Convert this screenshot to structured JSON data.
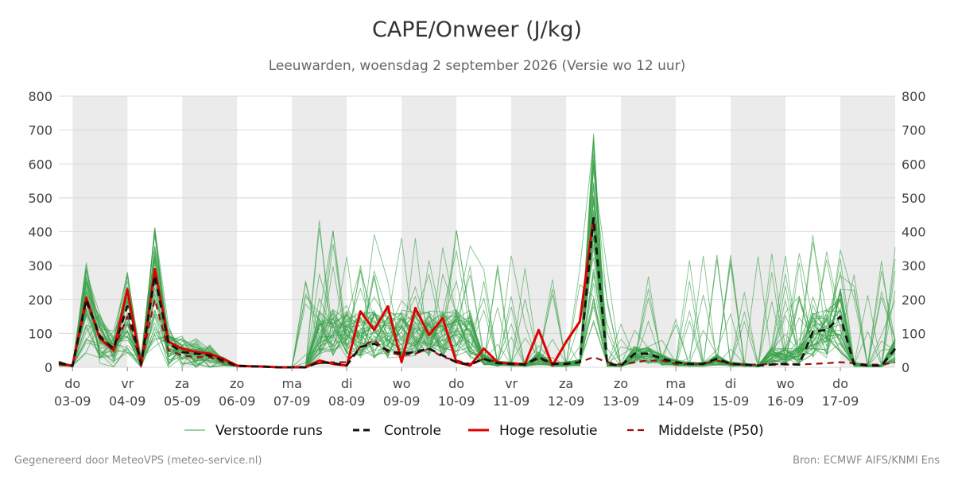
{
  "header": {
    "title": "CAPE/Onweer (J/kg)",
    "subtitle": "Leeuwarden, woensdag  2 september 2026 (Versie wo 12 uur)"
  },
  "footer": {
    "left": "Gegenereerd door MeteoVPS (meteo-service.nl)",
    "right": "Bron: ECMWF AIFS/KNMI Ens"
  },
  "legend": [
    {
      "key": "ens",
      "label": "Verstoorde runs",
      "color": "#3aa14a"
    },
    {
      "key": "ctl",
      "label": "Controle",
      "color": "#111111"
    },
    {
      "key": "hres",
      "label": "Hoge resolutie",
      "color": "#e00000"
    },
    {
      "key": "p50",
      "label": "Middelste (P50)",
      "color": "#9a1010"
    }
  ],
  "chart_data": {
    "type": "line",
    "title": "CAPE/Onweer (J/kg)",
    "x_unit": "days",
    "xlim": [
      0,
      15.25
    ],
    "ylim": [
      0,
      800
    ],
    "y_ticks": [
      0,
      100,
      200,
      300,
      400,
      500,
      600,
      700,
      800
    ],
    "y_axis_both_sides": true,
    "grid": true,
    "legend_position": "bottom",
    "x_ticks": [
      {
        "x": 0.25,
        "day": "do",
        "date": "03-09"
      },
      {
        "x": 1.25,
        "day": "vr",
        "date": "04-09"
      },
      {
        "x": 2.25,
        "day": "za",
        "date": "05-09"
      },
      {
        "x": 3.25,
        "day": "zo",
        "date": "06-09"
      },
      {
        "x": 4.25,
        "day": "ma",
        "date": "07-09"
      },
      {
        "x": 5.25,
        "day": "di",
        "date": "08-09"
      },
      {
        "x": 6.25,
        "day": "wo",
        "date": "09-09"
      },
      {
        "x": 7.25,
        "day": "do",
        "date": "10-09"
      },
      {
        "x": 8.25,
        "day": "vr",
        "date": "11-09"
      },
      {
        "x": 9.25,
        "day": "za",
        "date": "12-09"
      },
      {
        "x": 10.25,
        "day": "zo",
        "date": "13-09"
      },
      {
        "x": 11.25,
        "day": "ma",
        "date": "14-09"
      },
      {
        "x": 12.25,
        "day": "di",
        "date": "15-09"
      },
      {
        "x": 13.25,
        "day": "wo",
        "date": "16-09"
      },
      {
        "x": 14.25,
        "day": "do",
        "date": "17-09"
      }
    ],
    "shaded_bands": [
      [
        0.25,
        1.25
      ],
      [
        2.25,
        3.25
      ],
      [
        4.25,
        5.25
      ],
      [
        6.25,
        7.25
      ],
      [
        8.25,
        9.25
      ],
      [
        10.25,
        11.25
      ],
      [
        12.25,
        13.25
      ],
      [
        14.25,
        15.25
      ]
    ],
    "series": [
      {
        "name": "Hoge resolutie",
        "style": "solid",
        "color": "#e00000",
        "x": [
          0,
          0.25,
          0.5,
          0.75,
          1.0,
          1.25,
          1.5,
          1.75,
          2.0,
          2.25,
          2.5,
          2.75,
          3.0,
          3.25,
          3.5,
          3.75,
          4.0,
          4.25,
          4.5,
          4.75,
          5.0,
          5.25,
          5.5,
          5.75,
          6.0,
          6.25,
          6.5,
          6.75,
          7.0,
          7.25,
          7.5,
          7.75,
          8.0,
          8.25,
          8.5,
          8.75,
          9.0,
          9.25,
          9.5,
          9.75
        ],
        "values": [
          10,
          5,
          205,
          85,
          50,
          230,
          5,
          290,
          75,
          55,
          45,
          40,
          25,
          5,
          3,
          2,
          0,
          0,
          0,
          20,
          10,
          5,
          165,
          110,
          180,
          15,
          175,
          95,
          145,
          15,
          5,
          55,
          15,
          10,
          10,
          110,
          5,
          75,
          135,
          440
        ]
      },
      {
        "name": "Controle",
        "style": "dashed",
        "color": "#111111",
        "x": [
          0,
          0.25,
          0.5,
          0.75,
          1.0,
          1.25,
          1.5,
          1.75,
          2.0,
          2.25,
          2.5,
          2.75,
          3.0,
          3.25,
          3.5,
          3.75,
          4.0,
          4.25,
          4.5,
          4.75,
          5.0,
          5.25,
          5.5,
          5.75,
          6.0,
          6.25,
          6.5,
          6.75,
          7.0,
          7.25,
          7.5,
          7.75,
          8.0,
          8.25,
          8.5,
          8.75,
          9.0,
          9.25,
          9.5,
          9.75,
          10.0,
          10.25,
          10.5,
          10.75,
          11.0,
          11.25,
          11.5,
          11.75,
          12.0,
          12.25,
          12.5,
          12.75,
          13.0,
          13.25,
          13.5,
          13.75,
          14.0,
          14.25,
          14.5,
          14.75,
          15.0,
          15.25
        ],
        "values": [
          12,
          4,
          200,
          90,
          55,
          180,
          10,
          270,
          70,
          45,
          40,
          35,
          20,
          4,
          3,
          2,
          0,
          0,
          0,
          15,
          12,
          6,
          60,
          70,
          50,
          40,
          45,
          55,
          35,
          15,
          8,
          25,
          12,
          10,
          8,
          30,
          10,
          10,
          15,
          440,
          10,
          5,
          40,
          40,
          25,
          15,
          10,
          10,
          25,
          10,
          8,
          5,
          8,
          10,
          8,
          105,
          110,
          150,
          10,
          5,
          5,
          55
        ]
      },
      {
        "name": "Middelste (P50)",
        "style": "dashed",
        "color": "#9a1010",
        "x": [
          0,
          0.25,
          0.5,
          0.75,
          1.0,
          1.25,
          1.5,
          1.75,
          2.0,
          2.25,
          2.5,
          2.75,
          3.0,
          3.25,
          3.5,
          3.75,
          4.0,
          4.25,
          4.5,
          4.75,
          5.0,
          5.25,
          5.5,
          5.75,
          6.0,
          6.25,
          6.5,
          6.75,
          7.0,
          7.25,
          7.5,
          7.75,
          8.0,
          8.25,
          8.5,
          8.75,
          9.0,
          9.25,
          9.5,
          9.75,
          10.0,
          10.25,
          10.5,
          10.75,
          11.0,
          11.25,
          11.5,
          11.75,
          12.0,
          12.25,
          12.5,
          12.75,
          13.0,
          13.25,
          13.5,
          13.75,
          14.0,
          14.25,
          14.5,
          14.75,
          15.0,
          15.25
        ],
        "values": [
          15,
          5,
          190,
          95,
          50,
          150,
          10,
          200,
          50,
          35,
          30,
          30,
          15,
          3,
          2,
          1,
          0,
          0,
          2,
          12,
          15,
          15,
          60,
          80,
          45,
          35,
          40,
          55,
          30,
          20,
          10,
          25,
          15,
          12,
          10,
          25,
          12,
          12,
          15,
          30,
          15,
          8,
          15,
          20,
          20,
          10,
          10,
          10,
          20,
          10,
          8,
          8,
          10,
          8,
          8,
          10,
          12,
          15,
          12,
          8,
          8,
          15
        ]
      }
    ]
  }
}
